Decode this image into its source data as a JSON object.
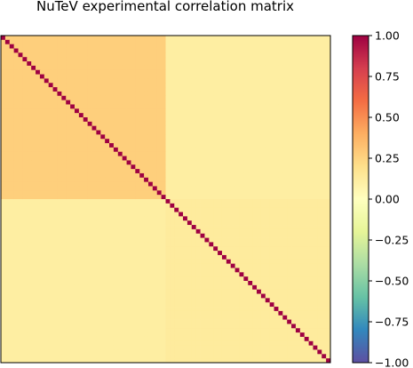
{
  "chart_data": {
    "type": "heatmap",
    "title": "NuTeV experimental correlation matrix",
    "xlabel": "",
    "ylabel": "",
    "matrix_size": 76,
    "diagonal_value": 1.0,
    "block_split_index": 38,
    "off_diagonal_block_values": {
      "upper_left_block": 0.27,
      "lower_right_block": 0.13,
      "cross_blocks": 0.11
    },
    "x_ticks_shown": false,
    "y_ticks_shown": false,
    "colorbar": {
      "colormap": "Spectral_r",
      "range": [
        -1.0,
        1.0
      ],
      "tick_values": [
        1.0,
        0.75,
        0.5,
        0.25,
        0.0,
        -0.25,
        -0.5,
        -0.75,
        -1.0
      ],
      "tick_labels": [
        "1.00",
        "0.75",
        "0.50",
        "0.25",
        "0.00",
        "−0.25",
        "−0.50",
        "−0.75",
        "−1.00"
      ],
      "location": "right"
    },
    "grid": false
  },
  "colormap_stops": [
    {
      "v": -1.0,
      "color": "#5e4fa2"
    },
    {
      "v": -0.8,
      "color": "#3288bd"
    },
    {
      "v": -0.6,
      "color": "#66c2a5"
    },
    {
      "v": -0.4,
      "color": "#abdda4"
    },
    {
      "v": -0.2,
      "color": "#e6f598"
    },
    {
      "v": 0.0,
      "color": "#ffffbf"
    },
    {
      "v": 0.2,
      "color": "#fee08b"
    },
    {
      "v": 0.4,
      "color": "#fdae61"
    },
    {
      "v": 0.6,
      "color": "#f46d43"
    },
    {
      "v": 0.8,
      "color": "#d53e4f"
    },
    {
      "v": 1.0,
      "color": "#9e0142"
    }
  ]
}
